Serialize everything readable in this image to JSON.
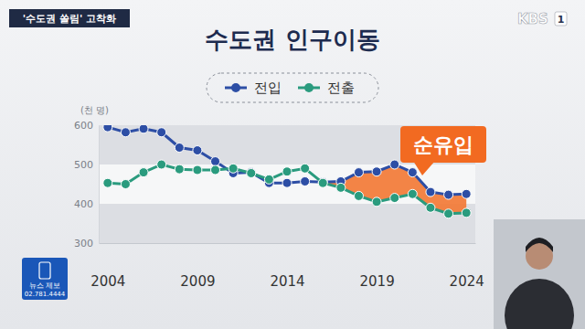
{
  "chart_data": {
    "type": "line",
    "title": "수도권 인구이동",
    "y_label": "(천 명)",
    "annotation": "순유입",
    "x": [
      2004,
      2005,
      2006,
      2007,
      2008,
      2009,
      2010,
      2011,
      2012,
      2013,
      2014,
      2015,
      2016,
      2017,
      2018,
      2019,
      2020,
      2021,
      2022,
      2023,
      2024
    ],
    "xlim": [
      2003.5,
      2024.5
    ],
    "xticks": [
      2004,
      2009,
      2014,
      2019,
      2024
    ],
    "ylim": [
      300,
      600
    ],
    "yticks": [
      300,
      400,
      500,
      600
    ],
    "grid": true,
    "legend": "top",
    "series": [
      {
        "name": "전입",
        "color": "#2d4ea5",
        "marker": "circle",
        "values": [
          595,
          582,
          591,
          582,
          543,
          536,
          508,
          478,
          480,
          453,
          453,
          457,
          455,
          457,
          480,
          482,
          500,
          480,
          430,
          423,
          425
        ]
      },
      {
        "name": "전출",
        "color": "#2a9b7e",
        "marker": "circle",
        "values": [
          453,
          450,
          480,
          500,
          488,
          486,
          486,
          490,
          478,
          462,
          482,
          490,
          453,
          441,
          420,
          405,
          415,
          425,
          390,
          375,
          377
        ]
      }
    ]
  },
  "banner": {
    "tag": "'수도권 쏠림' 고착화",
    "logo": "KBS",
    "channel": "1"
  },
  "news_tip": {
    "label": "뉴스 제보",
    "phone": "02.781.4444"
  }
}
